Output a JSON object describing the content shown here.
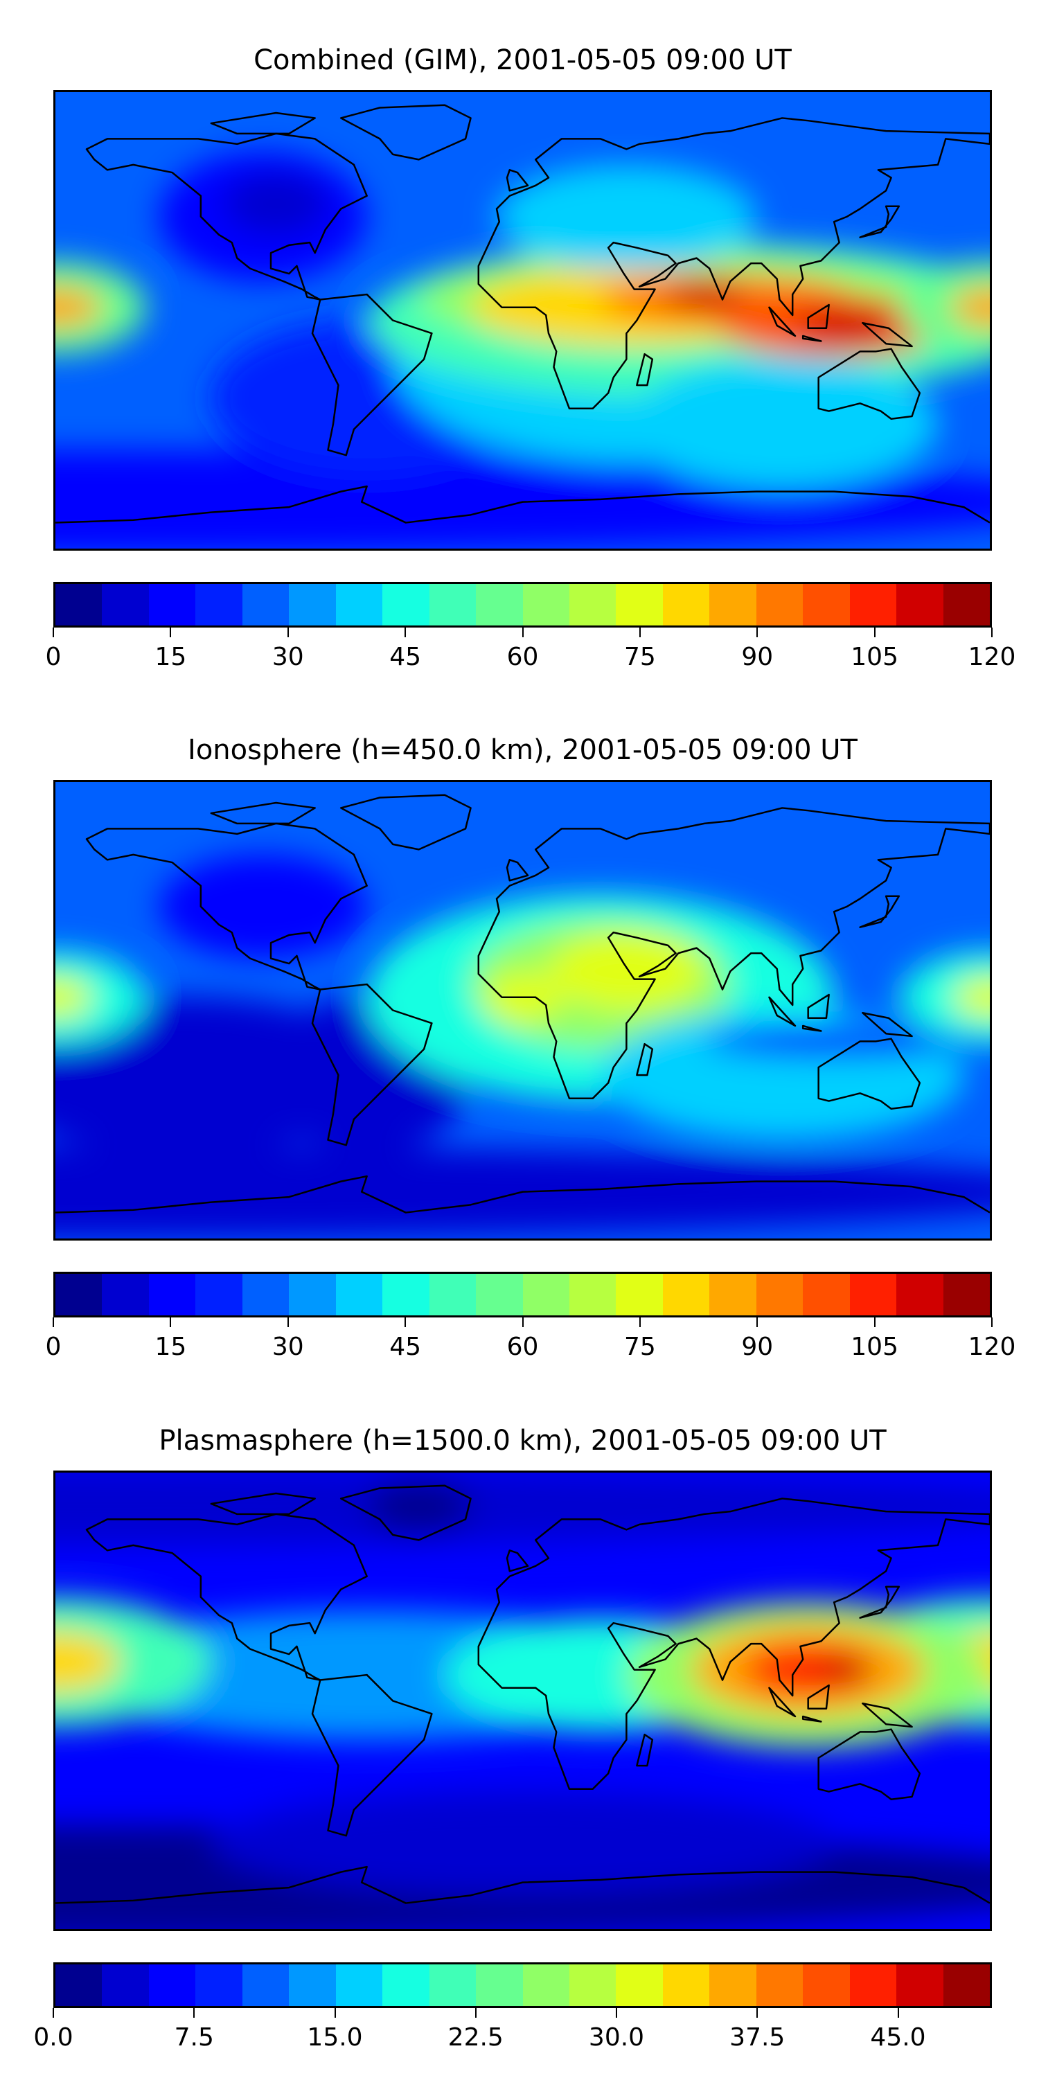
{
  "chart_data": [
    {
      "type": "heatmap",
      "title": "Combined (GIM), 2001-05-05 09:00 UT",
      "projection": "PlateCarree global map with coastlines",
      "colorbar": {
        "range": [
          0,
          120
        ],
        "levels": 20,
        "colormap": "jet",
        "ticks": [
          "0",
          "15",
          "30",
          "45",
          "60",
          "75",
          "90",
          "105",
          "120"
        ],
        "tick_values": [
          0,
          15,
          30,
          45,
          60,
          75,
          90,
          105,
          120
        ]
      },
      "features": [
        "maximum ~110 over Indonesia / SE Asia near equator",
        "secondary maximum ~90 over Indian Ocean/East Africa",
        "~85 peak at dateline near 5N",
        "minimum ~10 over North America and southern high latitudes"
      ]
    },
    {
      "type": "heatmap",
      "title": "Ionosphere  (h=450.0 km), 2001-05-05 09:00 UT",
      "projection": "PlateCarree global map with coastlines",
      "colorbar": {
        "range": [
          0,
          120
        ],
        "levels": 20,
        "colormap": "jet",
        "ticks": [
          "0",
          "15",
          "30",
          "45",
          "60",
          "75",
          "90",
          "105",
          "120"
        ],
        "tick_values": [
          0,
          15,
          30,
          45,
          60,
          75,
          90,
          105,
          120
        ]
      },
      "features": [
        "maximum ~70 over Africa/Arabia and dateline near 5N",
        "minimum ~5 over South Pacific"
      ]
    },
    {
      "type": "heatmap",
      "title": "Plasmasphere (h=1500.0 km), 2001-05-05 09:00 UT",
      "projection": "PlateCarree global map with coastlines",
      "colorbar": {
        "range": [
          0,
          50
        ],
        "levels": 20,
        "colormap": "jet",
        "ticks": [
          "0.0",
          "7.5",
          "15.0",
          "22.5",
          "30.0",
          "37.5",
          "45.0"
        ],
        "tick_values": [
          0,
          7.5,
          15,
          22.5,
          30,
          37.5,
          45
        ]
      },
      "features": [
        "maximum ~45 over SE Asia / Philippines",
        "~35 at dateline near 15N",
        "minimum ~2 at high latitudes"
      ]
    }
  ],
  "colors": [
    "#000090",
    "#0000d0",
    "#0000ff",
    "#0020ff",
    "#0060ff",
    "#0098ff",
    "#00d0ff",
    "#16ffe1",
    "#40ffb7",
    "#66ff90",
    "#90ff66",
    "#b7ff40",
    "#e1ff16",
    "#ffd800",
    "#ffa800",
    "#ff7800",
    "#ff5000",
    "#ff2000",
    "#d00000",
    "#9a0000"
  ]
}
